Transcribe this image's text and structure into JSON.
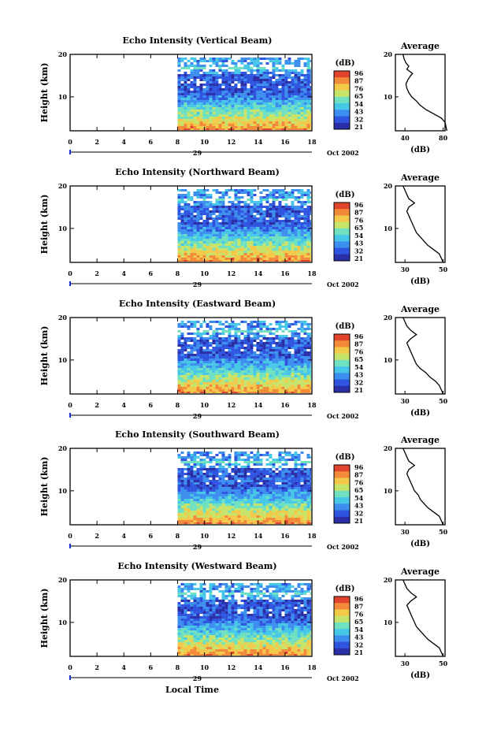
{
  "date_label": "Oct 2002",
  "day_label": "29",
  "x_axis_label": "Local Time",
  "chart_data": [
    {
      "type": "heatmap",
      "title": "Echo Intensity (Vertical Beam)",
      "ylabel": "Height (km)",
      "xlim": [
        0,
        18
      ],
      "ylim": [
        2,
        20
      ],
      "x_ticks": [
        "0",
        "2",
        "4",
        "6",
        "8",
        "10",
        "12",
        "14",
        "16",
        "18"
      ],
      "y_ticks": [
        "20",
        "10"
      ],
      "data_start_hour": 8,
      "colorbar": {
        "unit": "(dB)",
        "ticks": [
          "96",
          "87",
          "76",
          "65",
          "54",
          "43",
          "32",
          "21"
        ]
      },
      "average": {
        "title": "Average",
        "xlabel": "(dB)",
        "x_ticks": [
          "40",
          "80"
        ],
        "y_ticks": [
          "20",
          "10"
        ],
        "profile": [
          [
            84,
            2
          ],
          [
            83,
            3
          ],
          [
            82,
            4
          ],
          [
            78,
            5
          ],
          [
            70,
            6
          ],
          [
            62,
            7
          ],
          [
            56,
            8
          ],
          [
            52,
            9
          ],
          [
            47,
            10
          ],
          [
            44,
            11
          ],
          [
            42,
            12
          ],
          [
            41,
            13
          ],
          [
            43,
            14
          ],
          [
            46,
            15
          ],
          [
            48,
            15.5
          ],
          [
            42,
            16.5
          ],
          [
            44,
            17.2
          ],
          [
            41,
            18
          ],
          [
            39,
            19
          ],
          [
            38,
            20
          ]
        ]
      }
    },
    {
      "type": "heatmap",
      "title": "Echo Intensity (Northward Beam)",
      "ylabel": "Height (km)",
      "xlim": [
        0,
        18
      ],
      "ylim": [
        2,
        20
      ],
      "x_ticks": [
        "0",
        "2",
        "4",
        "6",
        "8",
        "10",
        "12",
        "14",
        "16",
        "18"
      ],
      "y_ticks": [
        "20",
        "10"
      ],
      "data_start_hour": 8,
      "colorbar": {
        "unit": "(dB)",
        "ticks": [
          "96",
          "87",
          "76",
          "65",
          "54",
          "43",
          "32",
          "21"
        ]
      },
      "average": {
        "title": "Average",
        "xlabel": "(dB)",
        "x_ticks": [
          "30",
          "50"
        ],
        "y_ticks": [
          "20",
          "10"
        ],
        "profile": [
          [
            50,
            2
          ],
          [
            49,
            3
          ],
          [
            48,
            4
          ],
          [
            45,
            5
          ],
          [
            42,
            6
          ],
          [
            40,
            7
          ],
          [
            38,
            8
          ],
          [
            36,
            9
          ],
          [
            35,
            10
          ],
          [
            34,
            11
          ],
          [
            33,
            12
          ],
          [
            32,
            13
          ],
          [
            31,
            14
          ],
          [
            32,
            15
          ],
          [
            35,
            16
          ],
          [
            32,
            17
          ],
          [
            31,
            18
          ],
          [
            30,
            19
          ],
          [
            29,
            20
          ]
        ]
      }
    },
    {
      "type": "heatmap",
      "title": "Echo Intensity (Eastward Beam)",
      "ylabel": "Height (km)",
      "xlim": [
        0,
        18
      ],
      "ylim": [
        2,
        20
      ],
      "x_ticks": [
        "0",
        "2",
        "4",
        "6",
        "8",
        "10",
        "12",
        "14",
        "16",
        "18"
      ],
      "y_ticks": [
        "20",
        "10"
      ],
      "data_start_hour": 8,
      "colorbar": {
        "unit": "(dB)",
        "ticks": [
          "96",
          "87",
          "76",
          "65",
          "54",
          "43",
          "32",
          "21"
        ]
      },
      "average": {
        "title": "Average",
        "xlabel": "(dB)",
        "x_ticks": [
          "30",
          "50"
        ],
        "y_ticks": [
          "20",
          "10"
        ],
        "profile": [
          [
            50,
            2
          ],
          [
            49,
            3
          ],
          [
            48,
            4
          ],
          [
            46,
            5
          ],
          [
            43,
            6
          ],
          [
            41,
            7
          ],
          [
            38,
            8
          ],
          [
            36,
            9
          ],
          [
            35,
            10
          ],
          [
            34,
            11
          ],
          [
            33,
            12
          ],
          [
            32,
            13
          ],
          [
            31,
            14
          ],
          [
            33,
            15
          ],
          [
            36,
            16
          ],
          [
            33,
            17
          ],
          [
            31,
            18
          ],
          [
            30,
            19
          ],
          [
            29,
            20
          ]
        ]
      }
    },
    {
      "type": "heatmap",
      "title": "Echo Intensity (Southward Beam)",
      "ylabel": "Height (km)",
      "xlim": [
        0,
        18
      ],
      "ylim": [
        2,
        20
      ],
      "x_ticks": [
        "0",
        "2",
        "4",
        "6",
        "8",
        "10",
        "12",
        "14",
        "16",
        "18"
      ],
      "y_ticks": [
        "20",
        "10"
      ],
      "data_start_hour": 8,
      "colorbar": {
        "unit": "(dB)",
        "ticks": [
          "96",
          "87",
          "76",
          "65",
          "54",
          "43",
          "32",
          "21"
        ]
      },
      "average": {
        "title": "Average",
        "xlabel": "(dB)",
        "x_ticks": [
          "30",
          "50"
        ],
        "y_ticks": [
          "20",
          "10"
        ],
        "profile": [
          [
            50,
            2
          ],
          [
            49,
            3
          ],
          [
            48,
            4
          ],
          [
            45,
            5
          ],
          [
            42,
            6
          ],
          [
            40,
            7
          ],
          [
            38,
            8
          ],
          [
            37,
            9
          ],
          [
            35,
            10
          ],
          [
            34,
            11
          ],
          [
            33,
            12
          ],
          [
            32,
            13
          ],
          [
            31,
            14
          ],
          [
            32,
            15
          ],
          [
            35,
            16
          ],
          [
            32,
            17
          ],
          [
            31,
            18
          ],
          [
            30,
            19
          ],
          [
            29,
            20
          ]
        ]
      }
    },
    {
      "type": "heatmap",
      "title": "Echo Intensity (Westward Beam)",
      "ylabel": "Height (km)",
      "xlim": [
        0,
        18
      ],
      "ylim": [
        2,
        20
      ],
      "x_ticks": [
        "0",
        "2",
        "4",
        "6",
        "8",
        "10",
        "12",
        "14",
        "16",
        "18"
      ],
      "y_ticks": [
        "20",
        "10"
      ],
      "data_start_hour": 8,
      "colorbar": {
        "unit": "(dB)",
        "ticks": [
          "96",
          "87",
          "76",
          "65",
          "54",
          "43",
          "32",
          "21"
        ]
      },
      "average": {
        "title": "Average",
        "xlabel": "(dB)",
        "x_ticks": [
          "30",
          "50"
        ],
        "y_ticks": [
          "20",
          "10"
        ],
        "profile": [
          [
            50,
            2
          ],
          [
            49,
            3
          ],
          [
            48,
            4
          ],
          [
            45,
            5
          ],
          [
            42,
            6
          ],
          [
            40,
            7
          ],
          [
            38,
            8
          ],
          [
            36,
            9
          ],
          [
            35,
            10
          ],
          [
            34,
            11
          ],
          [
            33,
            12
          ],
          [
            32,
            13
          ],
          [
            31,
            14
          ],
          [
            33,
            15
          ],
          [
            36,
            16
          ],
          [
            33,
            17
          ],
          [
            31,
            18
          ],
          [
            30,
            19
          ],
          [
            29,
            20
          ]
        ]
      }
    }
  ]
}
